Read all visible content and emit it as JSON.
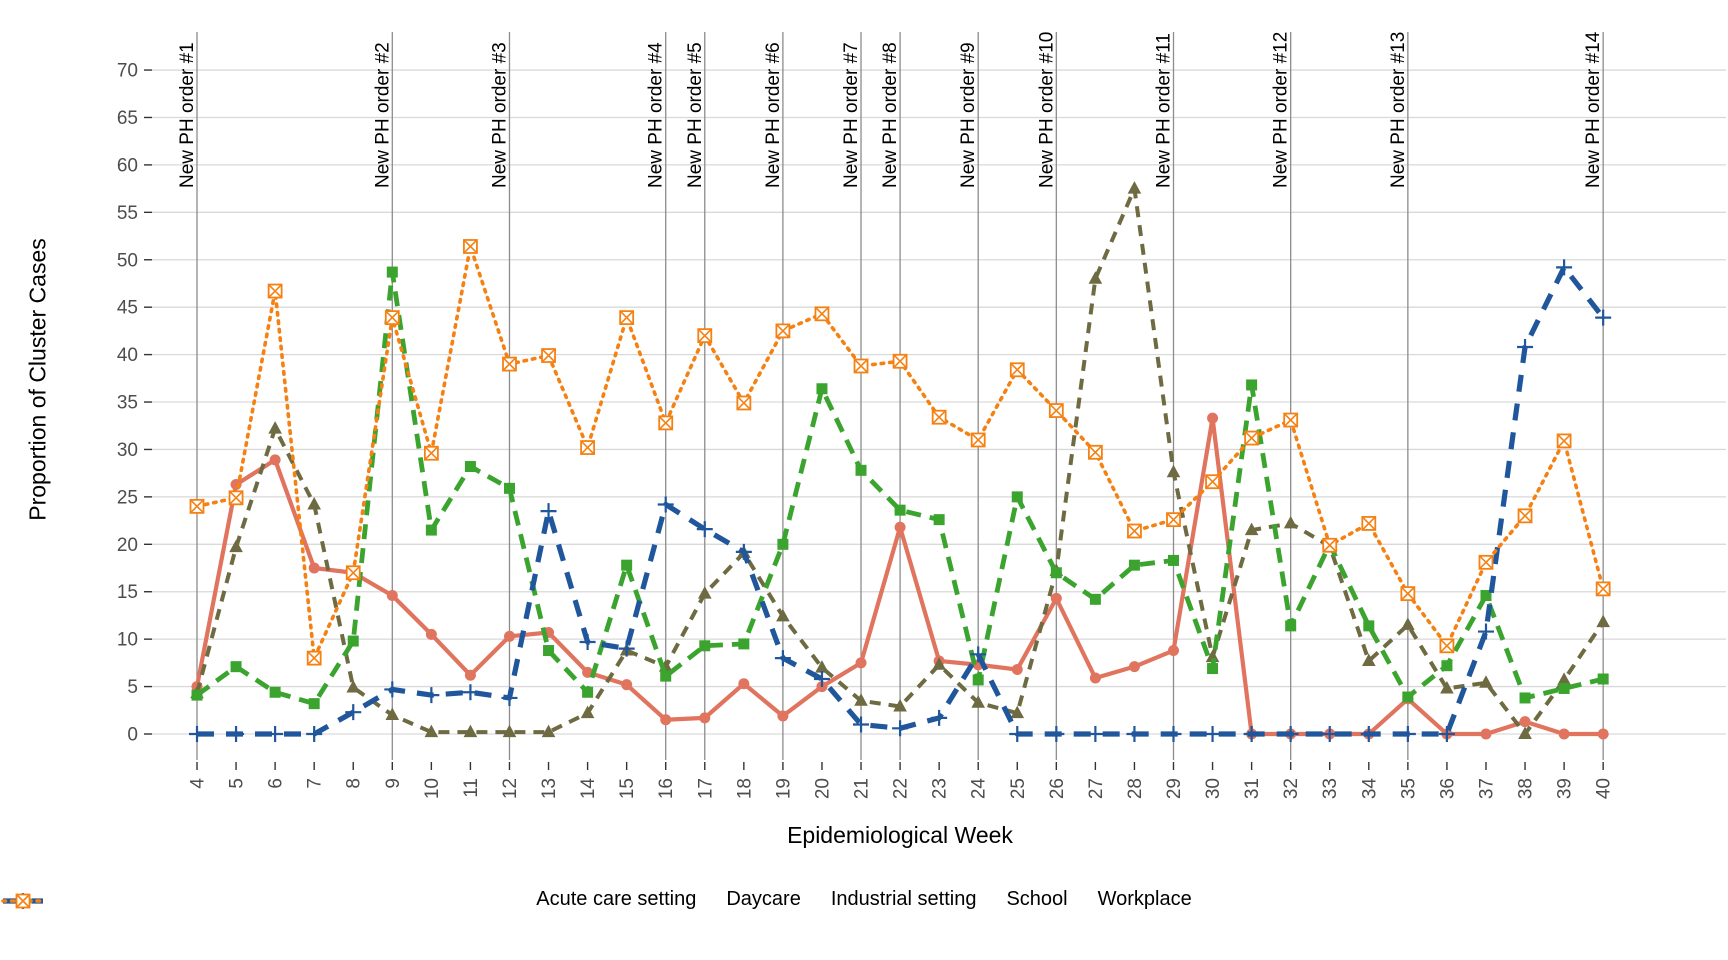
{
  "chart_data": {
    "type": "line",
    "title": "",
    "xlabel": "Epidemiological Week",
    "ylabel": "Proportion of Cluster Cases",
    "x_ticks": [
      4,
      5,
      6,
      7,
      8,
      9,
      10,
      11,
      12,
      13,
      14,
      15,
      16,
      17,
      18,
      19,
      20,
      21,
      22,
      23,
      24,
      25,
      26,
      27,
      28,
      29,
      30,
      31,
      32,
      33,
      34,
      35,
      36,
      37,
      38,
      39,
      40
    ],
    "y_ticks": [
      0,
      5,
      10,
      15,
      20,
      25,
      30,
      35,
      40,
      45,
      50,
      55,
      60,
      65,
      70
    ],
    "ylim": [
      0,
      70
    ],
    "grid": "horizontal",
    "legend_position": "bottom",
    "annotations": [
      {
        "week": 4,
        "label": "New PH order #1"
      },
      {
        "week": 9,
        "label": "New PH order #2"
      },
      {
        "week": 12,
        "label": "New PH order #3"
      },
      {
        "week": 16,
        "label": "New PH order #4"
      },
      {
        "week": 17,
        "label": "New PH order #5"
      },
      {
        "week": 19,
        "label": "New PH order #6"
      },
      {
        "week": 21,
        "label": "New PH order #7"
      },
      {
        "week": 22,
        "label": "New PH order #8"
      },
      {
        "week": 24,
        "label": "New PH order #9"
      },
      {
        "week": 26,
        "label": "New PH order #10"
      },
      {
        "week": 29,
        "label": "New PH order #11"
      },
      {
        "week": 32,
        "label": "New PH order #12"
      },
      {
        "week": 35,
        "label": "New PH order #13"
      },
      {
        "week": 40,
        "label": "New PH order #14"
      }
    ],
    "series": [
      {
        "name": "Acute care setting",
        "color": "#E0745E",
        "marker": "circle",
        "line_style": "solid",
        "values": [
          5.0,
          26.3,
          28.9,
          17.5,
          17.0,
          14.6,
          10.5,
          6.2,
          10.3,
          10.7,
          6.5,
          5.2,
          1.5,
          1.7,
          5.3,
          1.9,
          5.0,
          7.5,
          21.8,
          7.7,
          7.3,
          6.8,
          14.3,
          5.9,
          7.1,
          8.8,
          33.3,
          0,
          0,
          0,
          0,
          3.7,
          0,
          0,
          1.3,
          0,
          0
        ]
      },
      {
        "name": "Daycare",
        "color": "#6E6A42",
        "marker": "triangle",
        "line_style": "dashed",
        "values": [
          4.3,
          19.7,
          32.2,
          24.2,
          4.9,
          2.0,
          0.2,
          0.2,
          0.2,
          0.2,
          2.2,
          8.8,
          7.1,
          14.8,
          19.1,
          12.4,
          7.0,
          3.5,
          2.9,
          7.3,
          3.3,
          2.2,
          17.2,
          48.0,
          57.5,
          27.6,
          8.1,
          21.5,
          22.2,
          19.8,
          7.7,
          11.5,
          4.8,
          5.4,
          0,
          5.7,
          11.8
        ]
      },
      {
        "name": "Industrial setting",
        "color": "#3BA42F",
        "marker": "square",
        "line_style": "dashed-long",
        "values": [
          4.1,
          7.1,
          4.4,
          3.2,
          9.8,
          48.7,
          21.5,
          28.2,
          25.9,
          8.8,
          4.4,
          17.8,
          6.1,
          9.3,
          9.5,
          20.0,
          36.4,
          27.8,
          23.6,
          22.6,
          5.7,
          25.0,
          17.0,
          14.2,
          17.8,
          18.3,
          6.9,
          36.8,
          11.4,
          20.0,
          11.4,
          3.9,
          7.2,
          14.6,
          3.8,
          4.8,
          5.8
        ]
      },
      {
        "name": "School",
        "color": "#20569B",
        "marker": "plus",
        "line_style": "longdash",
        "values": [
          0,
          0,
          0,
          0,
          2.3,
          4.7,
          4.1,
          4.4,
          3.8,
          23.5,
          9.7,
          9.0,
          24.2,
          21.6,
          19.2,
          8.0,
          5.8,
          1.0,
          0.6,
          1.7,
          8.4,
          0,
          0,
          0,
          0,
          0,
          0,
          0,
          0,
          0,
          0,
          0,
          0,
          10.8,
          40.8,
          49.2,
          43.9
        ]
      },
      {
        "name": "Workplace",
        "color": "#F58113",
        "marker": "square-x",
        "line_style": "dotted",
        "values": [
          24.0,
          24.9,
          46.7,
          8.0,
          17.0,
          43.9,
          29.6,
          51.4,
          39.0,
          39.9,
          30.2,
          43.9,
          32.8,
          42.0,
          34.9,
          42.5,
          44.3,
          38.8,
          39.3,
          33.4,
          31.0,
          38.4,
          34.1,
          29.7,
          21.4,
          22.6,
          26.6,
          31.2,
          33.1,
          19.9,
          22.2,
          14.8,
          9.3,
          18.1,
          23.0,
          30.9,
          15.3
        ]
      }
    ]
  },
  "styles": {
    "background": "#FFFFFF",
    "grid_color": "#D9D9D9",
    "annotation_line_color": "#8C8C8C",
    "tick_mark_color": "#333333",
    "tick_label_color": "#4D4D4D",
    "axis_title_color": "#000000"
  }
}
